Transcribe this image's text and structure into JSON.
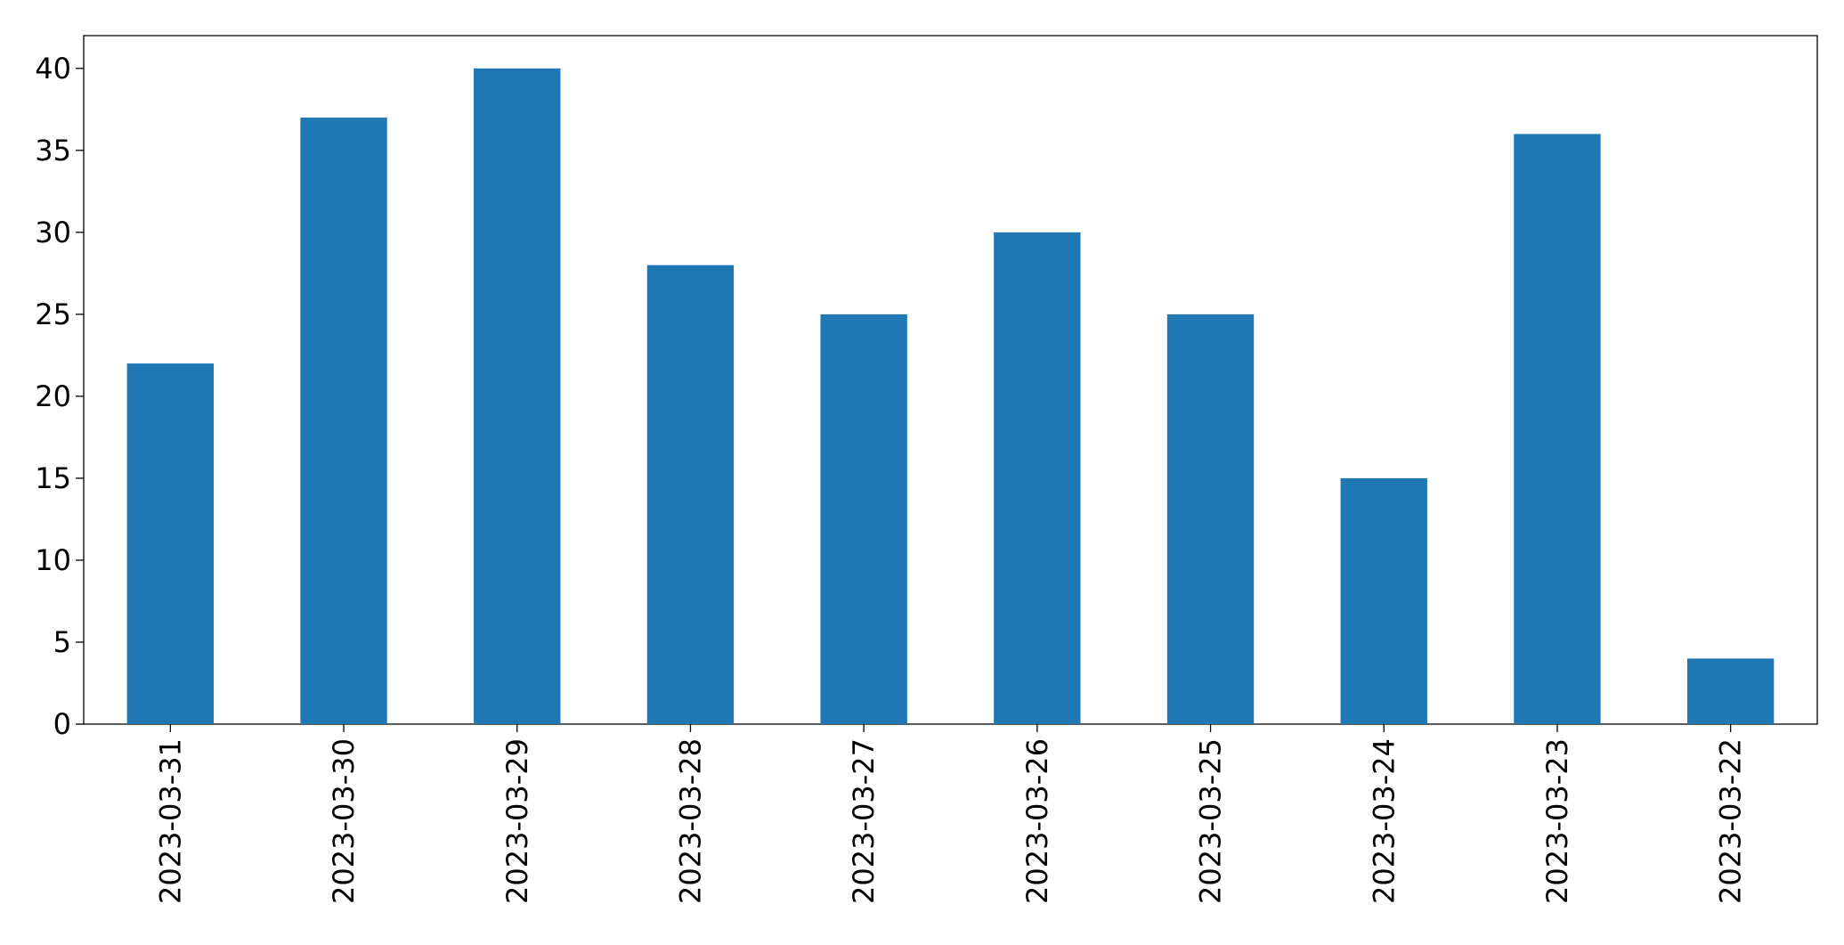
{
  "chart_data": {
    "type": "bar",
    "categories": [
      "2023-03-31",
      "2023-03-30",
      "2023-03-29",
      "2023-03-28",
      "2023-03-27",
      "2023-03-26",
      "2023-03-25",
      "2023-03-24",
      "2023-03-23",
      "2023-03-22"
    ],
    "values": [
      22,
      37,
      40,
      28,
      25,
      30,
      25,
      15,
      36,
      4
    ],
    "color": "#1f77b4",
    "ylim": [
      0,
      42
    ],
    "yticks": [
      0,
      5,
      10,
      15,
      20,
      25,
      30,
      35,
      40
    ],
    "grid": false
  }
}
